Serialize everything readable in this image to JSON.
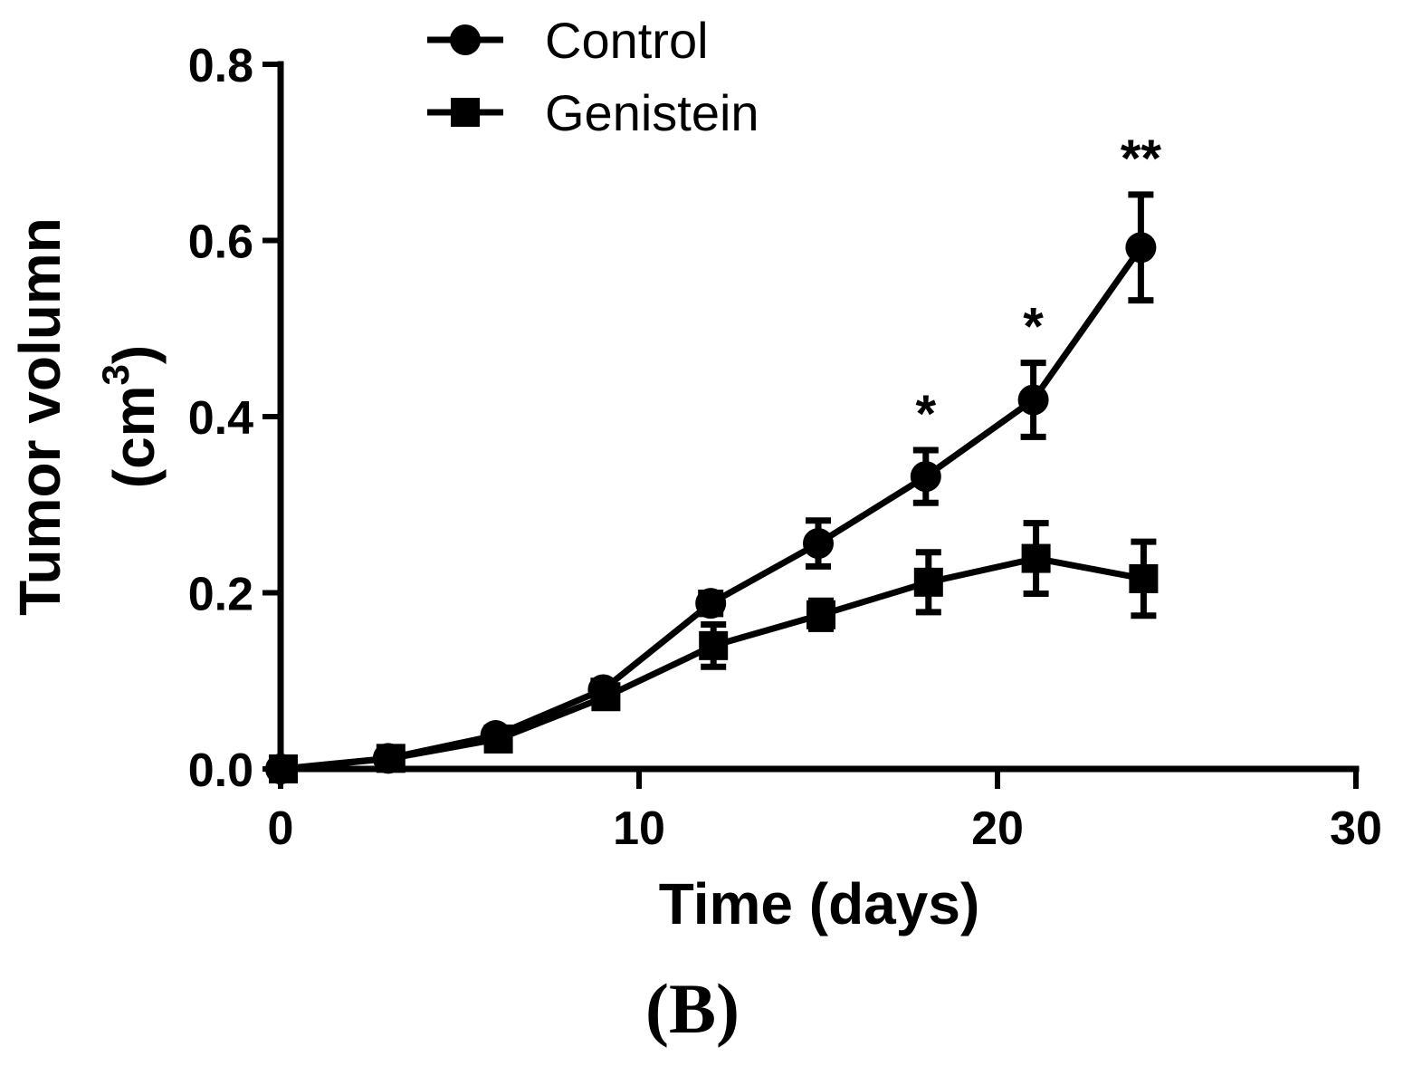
{
  "chart_data": {
    "type": "line",
    "title": "",
    "xlabel": "Time (days)",
    "ylabel_line1": "Tumor volumn",
    "ylabel_line2_prefix": "(cm",
    "ylabel_line2_sup": "3",
    "ylabel_line2_suffix": ")",
    "xlim": [
      0,
      30
    ],
    "ylim": [
      0,
      0.8
    ],
    "x_ticks": [
      0,
      10,
      20,
      30
    ],
    "x_tick_labels": [
      "0",
      "10",
      "20",
      "30"
    ],
    "y_ticks": [
      0,
      0.2,
      0.4,
      0.6,
      0.8
    ],
    "y_tick_labels": [
      "0.0",
      "0.2",
      "0.4",
      "0.6",
      "0.8"
    ],
    "legend_position": "top-left",
    "panel_label": "(B)",
    "series": [
      {
        "name": "Control",
        "marker": "circle",
        "x": [
          0,
          3,
          6,
          9,
          12,
          15,
          18,
          21,
          24
        ],
        "values": [
          0.0,
          0.012,
          0.038,
          0.09,
          0.188,
          0.256,
          0.332,
          0.419,
          0.592
        ],
        "errors": [
          0.0,
          0.004,
          0.006,
          0.01,
          0.012,
          0.026,
          0.03,
          0.042,
          0.06
        ]
      },
      {
        "name": "Genistein",
        "marker": "square",
        "x": [
          0,
          3,
          6,
          9,
          12,
          15,
          18,
          21,
          24
        ],
        "values": [
          0.0,
          0.012,
          0.034,
          0.082,
          0.14,
          0.175,
          0.212,
          0.239,
          0.216
        ],
        "errors": [
          0.0,
          0.004,
          0.006,
          0.01,
          0.024,
          0.016,
          0.034,
          0.04,
          0.042
        ]
      }
    ],
    "annotations": [
      {
        "x": 18,
        "y": 0.332,
        "text": "*"
      },
      {
        "x": 21,
        "y": 0.419,
        "text": "*"
      },
      {
        "x": 24,
        "y": 0.592,
        "text": "**"
      }
    ]
  }
}
